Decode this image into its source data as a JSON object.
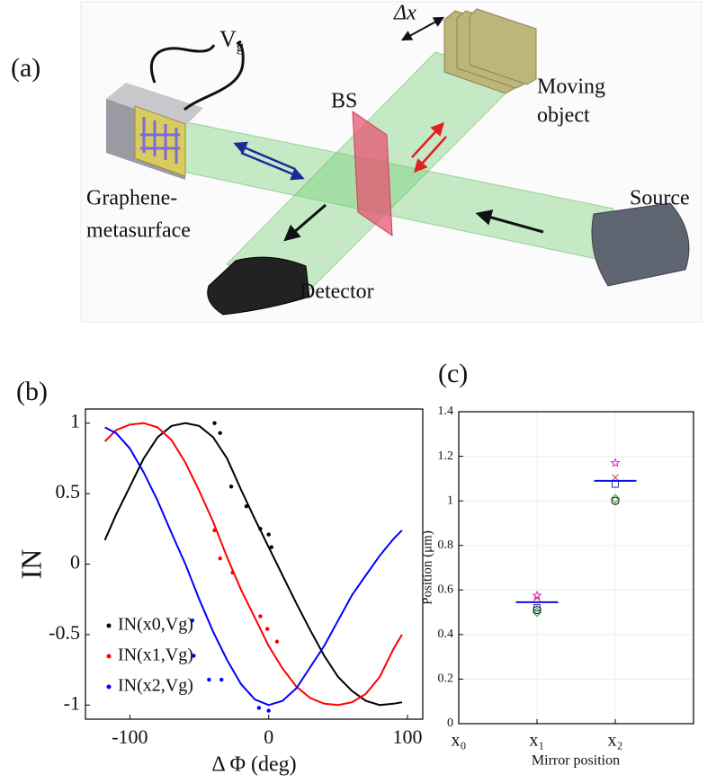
{
  "panel_a": {
    "label": "(a)",
    "labels": {
      "vg": [
        "V",
        "g"
      ],
      "dx": "Δx",
      "bs": "BS",
      "moving_object": [
        "Moving",
        "object"
      ],
      "graphene": [
        "Graphene-",
        "metasurface"
      ],
      "source": "Source",
      "detector": "Detector"
    }
  },
  "chart_data": [
    {
      "type": "line",
      "panel_label": "(b)",
      "xlabel": "Δ Φ (deg)",
      "ylabel": "IN",
      "xlim": [
        -132,
        111
      ],
      "ylim": [
        -1.1,
        1.1
      ],
      "xticks": [
        -100,
        0,
        100
      ],
      "yticks": [
        -1,
        -0.5,
        0,
        0.5,
        1
      ],
      "legend": "lower left",
      "x": [
        -118,
        -110,
        -100,
        -90,
        -80,
        -70,
        -60,
        -50,
        -40,
        -30,
        -20,
        -10,
        0,
        10,
        20,
        30,
        40,
        50,
        60,
        70,
        80,
        90,
        96
      ],
      "series": [
        {
          "name": "IN(x0,Vg)",
          "color": "#000000",
          "values": [
            0.17,
            0.35,
            0.55,
            0.75,
            0.9,
            0.98,
            1.0,
            0.98,
            0.9,
            0.75,
            0.53,
            0.32,
            0.12,
            -0.08,
            -0.28,
            -0.47,
            -0.65,
            -0.8,
            -0.9,
            -0.97,
            -1.0,
            -0.99,
            -0.98
          ],
          "points_x": [
            -39,
            -35,
            -27,
            -16,
            -6,
            0,
            2
          ],
          "points_y": [
            1.0,
            0.93,
            0.55,
            0.41,
            0.25,
            0.21,
            0.12
          ]
        },
        {
          "name": "IN(x1,Vg)",
          "color": "#ff0000",
          "values": [
            0.87,
            0.95,
            0.99,
            1.0,
            0.97,
            0.88,
            0.72,
            0.52,
            0.3,
            0.05,
            -0.18,
            -0.38,
            -0.58,
            -0.74,
            -0.87,
            -0.95,
            -0.99,
            -1.0,
            -0.98,
            -0.92,
            -0.8,
            -0.6,
            -0.5
          ],
          "points_x": [
            -39,
            -35,
            -26,
            -6,
            -1,
            6
          ],
          "points_y": [
            0.24,
            0.04,
            -0.06,
            -0.37,
            -0.46,
            -0.55
          ]
        },
        {
          "name": "IN(x2,Vg)",
          "color": "#0000ff",
          "values": [
            0.97,
            0.93,
            0.82,
            0.65,
            0.45,
            0.22,
            0.0,
            -0.25,
            -0.48,
            -0.68,
            -0.85,
            -0.96,
            -1.0,
            -0.97,
            -0.88,
            -0.73,
            -0.58,
            -0.4,
            -0.22,
            -0.08,
            0.06,
            0.18,
            0.24
          ],
          "points_x": [
            -55,
            -54,
            -43,
            -34,
            -7,
            0
          ],
          "points_y": [
            -0.4,
            -0.65,
            -0.82,
            -0.82,
            -1.02,
            -1.04
          ]
        }
      ]
    },
    {
      "type": "scatter",
      "panel_label": "(c)",
      "xlabel": "Mirror position",
      "ylabel": "Position (μm)",
      "xlim": [
        0,
        3
      ],
      "ylim": [
        0,
        1.4
      ],
      "grid": true,
      "xticks": [
        {
          "value": 0,
          "label": "x₀"
        },
        {
          "value": 1,
          "label": "x₁"
        },
        {
          "value": 2,
          "label": "x₂"
        }
      ],
      "yticks": [
        0,
        0.2,
        0.4,
        0.6,
        0.8,
        1,
        1.2,
        1.4
      ],
      "series": [
        {
          "marker": "star",
          "color": "#e020e0",
          "x": [
            1,
            2
          ],
          "values": [
            0.575,
            1.17
          ]
        },
        {
          "marker": "cross",
          "color": "#d04848",
          "x": [
            1,
            2
          ],
          "values": [
            0.565,
            1.105
          ]
        },
        {
          "marker": "square",
          "color": "#2030b0",
          "x": [
            1,
            2
          ],
          "values": [
            0.52,
            1.075
          ]
        },
        {
          "marker": "circle",
          "color": "#000000",
          "x": [
            1,
            2
          ],
          "values": [
            0.51,
            1.0
          ]
        },
        {
          "marker": "diamond",
          "color": "#30a030",
          "x": [
            1,
            2
          ],
          "values": [
            0.5,
            1.01
          ]
        },
        {
          "marker": "hline",
          "color": "#1010e0",
          "x": [
            1,
            2
          ],
          "values": [
            0.545,
            1.09
          ]
        }
      ]
    }
  ]
}
